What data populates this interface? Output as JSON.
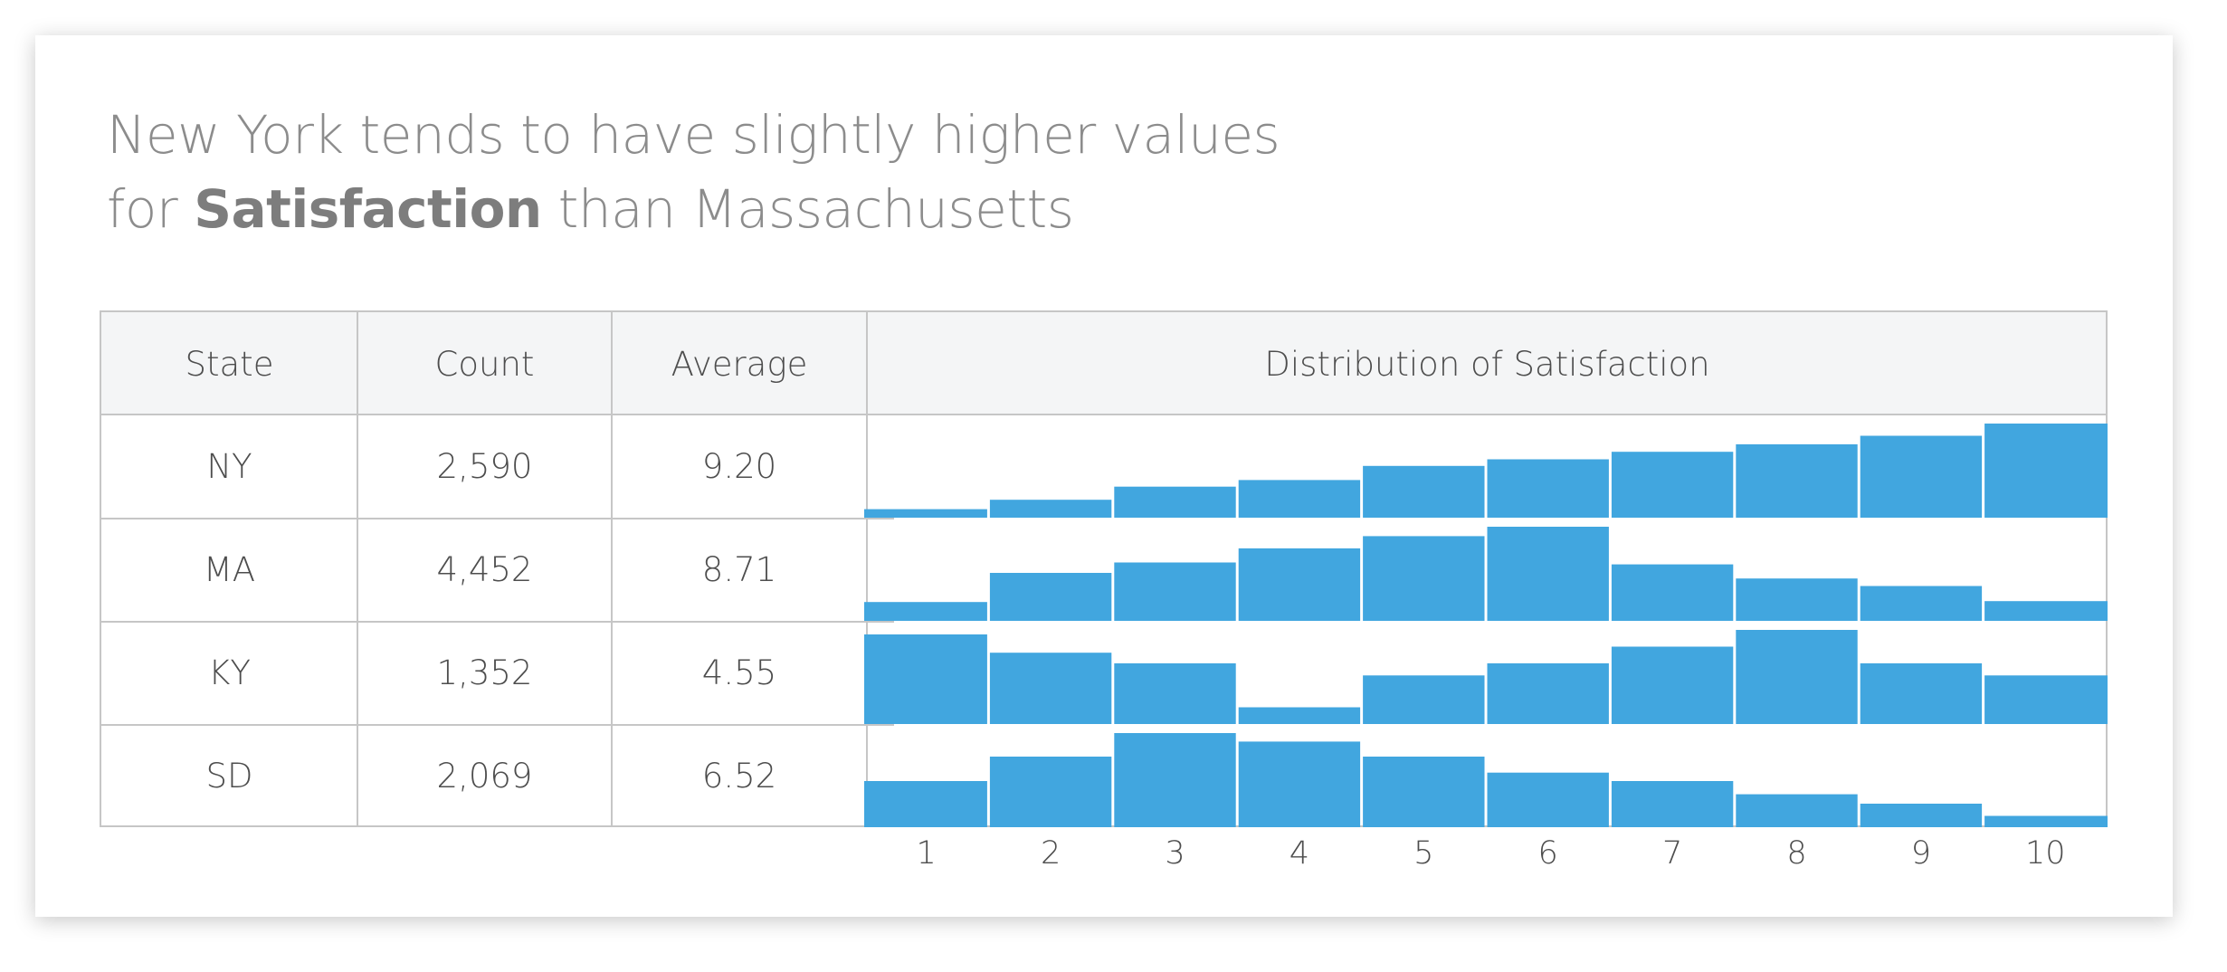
{
  "title": {
    "line1": "New York tends to have slightly higher values",
    "line2_prefix": "for ",
    "line2_bold": "Satisfaction",
    "line2_suffix": " than Massachusetts"
  },
  "table": {
    "headers": {
      "state": "State",
      "count": "Count",
      "average": "Average",
      "distribution": "Distribution of Satisfaction"
    },
    "rows": [
      {
        "state": "NY",
        "count": "2,590",
        "average": "9.20"
      },
      {
        "state": "MA",
        "count": "4,452",
        "average": "8.71"
      },
      {
        "state": "KY",
        "count": "1,352",
        "average": "4.55"
      },
      {
        "state": "SD",
        "count": "2,069",
        "average": "6.52"
      }
    ]
  },
  "chart_data": {
    "type": "bar",
    "title": "Distribution of Satisfaction",
    "categories": [
      "1",
      "2",
      "3",
      "4",
      "5",
      "6",
      "7",
      "8",
      "9",
      "10"
    ],
    "bar_color": "#41a6df",
    "series": [
      {
        "name": "NY",
        "values": [
          9,
          19,
          33,
          40,
          55,
          62,
          70,
          78,
          87,
          100
        ]
      },
      {
        "name": "MA",
        "values": [
          20,
          51,
          62,
          77,
          90,
          100,
          60,
          45,
          37,
          21
        ]
      },
      {
        "name": "KY",
        "values": [
          59,
          47,
          40,
          11,
          32,
          40,
          51,
          62,
          40,
          32
        ]
      },
      {
        "name": "SD",
        "values": [
          49,
          75,
          100,
          91,
          75,
          58,
          49,
          35,
          25,
          12
        ]
      }
    ]
  }
}
